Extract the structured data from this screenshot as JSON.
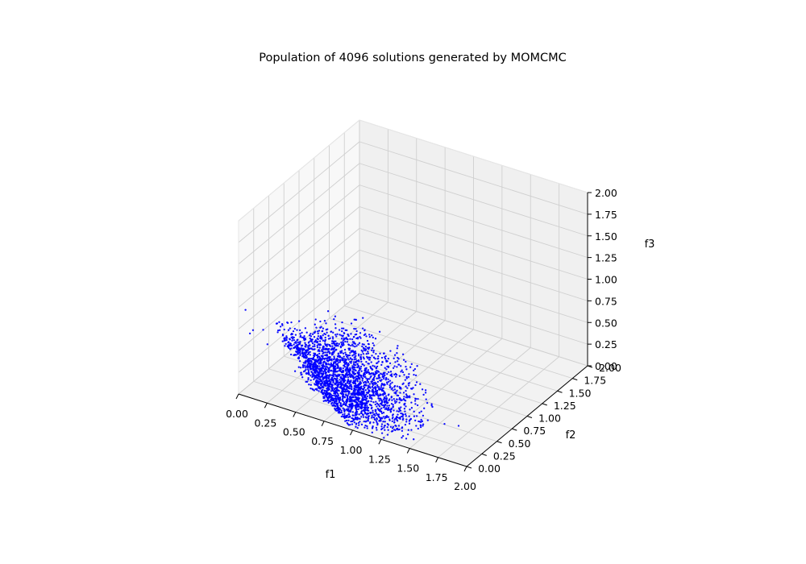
{
  "chart_data": {
    "type": "scatter",
    "title": "Population of 4096 solutions generated by MOMCMC",
    "xlabel": "f1",
    "ylabel": "f2",
    "zlabel": "f3",
    "xlim": [
      0,
      2
    ],
    "ylim": [
      0,
      2
    ],
    "zlim": [
      0,
      2
    ],
    "x_ticks": [
      "0.00",
      "0.25",
      "0.50",
      "0.75",
      "1.00",
      "1.25",
      "1.50",
      "1.75",
      "2.00"
    ],
    "y_ticks": [
      "0.00",
      "0.25",
      "0.50",
      "0.75",
      "1.00",
      "1.25",
      "1.50",
      "1.75",
      "2.00"
    ],
    "z_ticks": [
      "0.00",
      "0.25",
      "0.50",
      "0.75",
      "1.00",
      "1.25",
      "1.50",
      "1.75",
      "2.00"
    ],
    "grid": true,
    "projection": "3d",
    "point_count": 4096,
    "point_color": "#0000ff",
    "series": [
      {
        "sample_points": [
          [
            0.02,
            0.15,
            0.62
          ],
          [
            0.03,
            0.35,
            0.55
          ],
          [
            0.05,
            0.6,
            0.45
          ],
          [
            0.08,
            0.85,
            0.38
          ],
          [
            0.12,
            1.05,
            0.3
          ],
          [
            0.2,
            1.2,
            0.25
          ],
          [
            0.3,
            1.35,
            0.2
          ],
          [
            0.15,
            0.5,
            0.35
          ],
          [
            0.25,
            0.7,
            0.22
          ],
          [
            0.35,
            0.9,
            0.15
          ],
          [
            0.5,
            1.1,
            0.12
          ],
          [
            0.4,
            0.4,
            0.12
          ],
          [
            0.6,
            0.6,
            0.06
          ],
          [
            0.75,
            0.85,
            0.05
          ],
          [
            0.9,
            0.5,
            0.04
          ],
          [
            1.1,
            0.7,
            0.05
          ],
          [
            1.3,
            0.45,
            0.08
          ],
          [
            1.5,
            0.3,
            0.15
          ],
          [
            1.7,
            0.2,
            0.25
          ],
          [
            1.85,
            0.15,
            0.32
          ],
          [
            1.2,
            0.2,
            0.12
          ],
          [
            0.1,
            0.05,
            0.75
          ],
          [
            0.05,
            0.02,
            0.98
          ],
          [
            0.2,
            0.1,
            0.6
          ]
        ]
      }
    ]
  }
}
